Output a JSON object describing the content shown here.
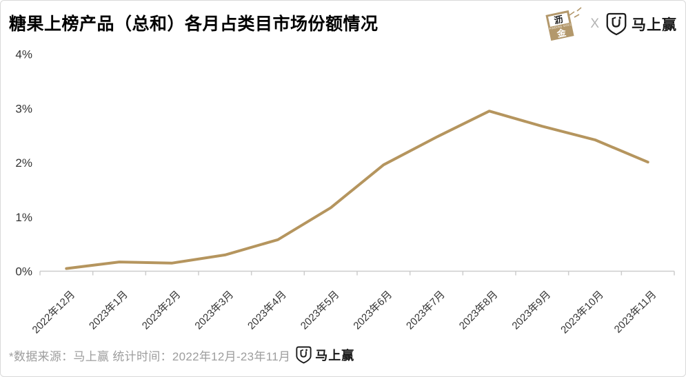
{
  "page": {
    "title": "糖果上榜产品（总和）各月占类目市场份额情况"
  },
  "header": {
    "lijin_logo": {
      "char_top": "沥",
      "subtext": "FINDING GOLD",
      "char_bottom": "金"
    },
    "separator": "X",
    "msy_logo_label": "马上赢"
  },
  "chart_data": {
    "type": "line",
    "title": "糖果上榜产品（总和）各月占类目市场份额情况",
    "categories": [
      "2022年12月",
      "2023年1月",
      "2023年2月",
      "2023年3月",
      "2023年4月",
      "2023年5月",
      "2023年6月",
      "2023年7月",
      "2023年8月",
      "2023年9月",
      "2023年10月",
      "2023年11月"
    ],
    "values": [
      0.05,
      0.17,
      0.15,
      0.3,
      0.58,
      1.17,
      1.96,
      2.47,
      2.95,
      2.67,
      2.42,
      2.01
    ],
    "unit": "%",
    "xlabel": "",
    "ylabel": "",
    "ylim": [
      0,
      4
    ],
    "ytick_labels": [
      "0%",
      "1%",
      "2%",
      "3%",
      "4%"
    ],
    "grid": false,
    "legend_position": "none",
    "line_color": "#b5955e",
    "axis_color": "#cccccc"
  },
  "footer": {
    "note": "*数据来源：马上赢 统计时间：2022年12月-23年11月",
    "brand_label": "马上赢"
  },
  "colors": {
    "accent_gold": "#b5955e",
    "brand_gold": "#b3986b",
    "text_gray": "#9d9d9d",
    "border": "#d9d9d9"
  }
}
